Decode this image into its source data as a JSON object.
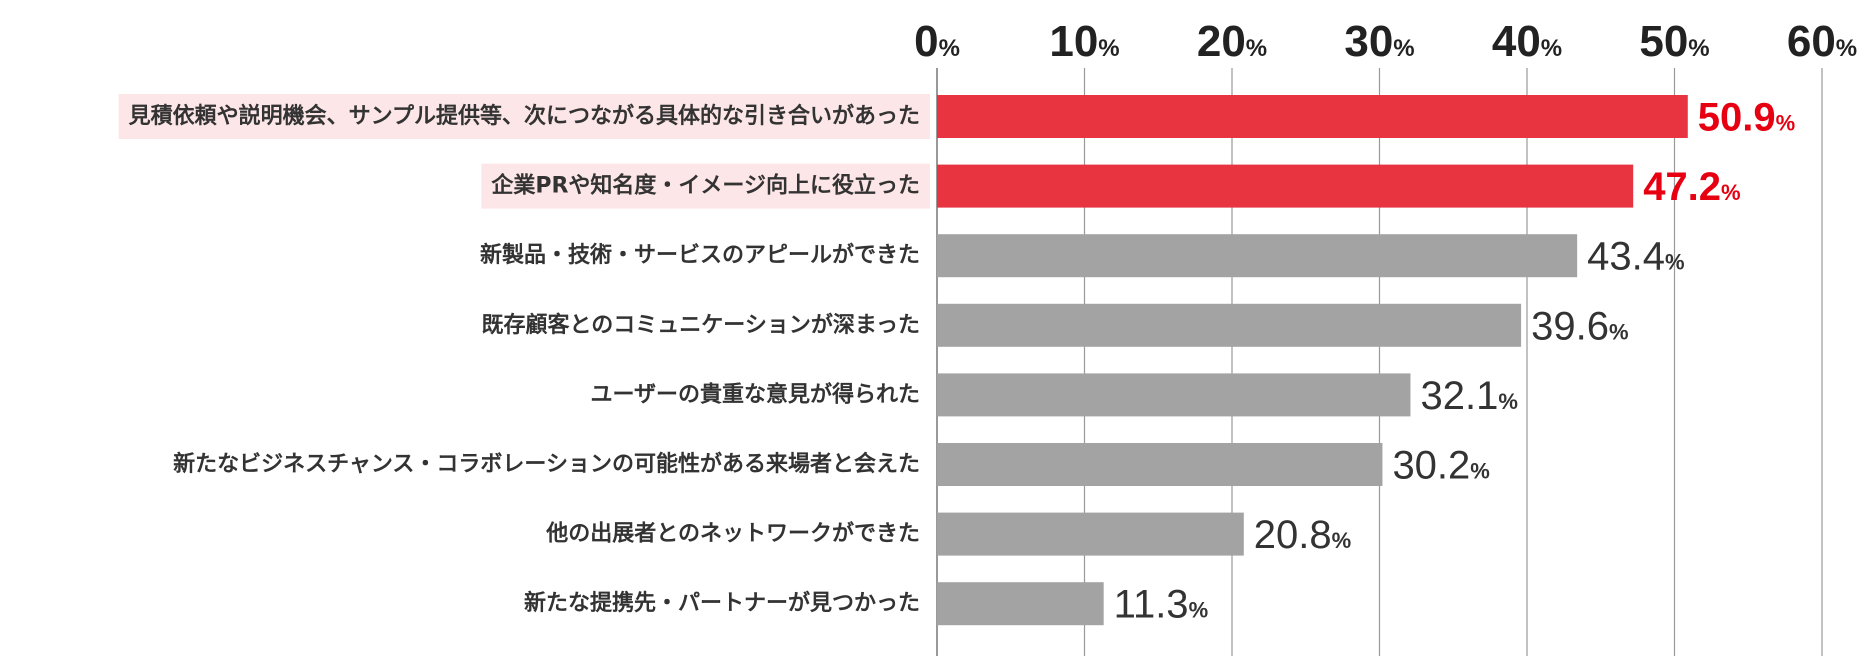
{
  "chart_data": {
    "type": "bar",
    "orientation": "horizontal",
    "title": "",
    "xlabel": "",
    "ylabel": "",
    "xlim": [
      0,
      60
    ],
    "x_ticks": [
      0,
      10,
      20,
      30,
      40,
      50,
      60
    ],
    "tick_unit": "%",
    "value_unit": "%",
    "grid": true,
    "categories": [
      "見積依頼や説明機会、サンプル提供等、次につながる具体的な引き合いがあった",
      "企業PRや知名度・イメージ向上に役立った",
      "新製品・技術・サービスのアピールができた",
      "既存顧客とのコミュニケーションが深まった",
      "ユーザーの貴重な意見が得られた",
      "新たなビジネスチャンス・コラボレーションの可能性がある来場者と会えた",
      "他の出展者とのネットワークができた",
      "新たな提携先・パートナーが見つかった"
    ],
    "values": [
      50.9,
      47.2,
      43.4,
      39.6,
      32.1,
      30.2,
      20.8,
      11.3
    ],
    "value_labels": [
      "50.9",
      "47.2",
      "43.4",
      "39.6",
      "32.1",
      "30.2",
      "20.8",
      "11.3"
    ],
    "highlighted": [
      true,
      true,
      false,
      false,
      false,
      false,
      false,
      false
    ],
    "colors": {
      "highlight_bar": "#e83340",
      "normal_bar": "#a3a3a3",
      "highlight_text": "#e60012",
      "normal_text": "#333333",
      "label_highlight_bg": "#fde6e7",
      "gridline": "#999999",
      "axis_text": "#222222"
    }
  }
}
